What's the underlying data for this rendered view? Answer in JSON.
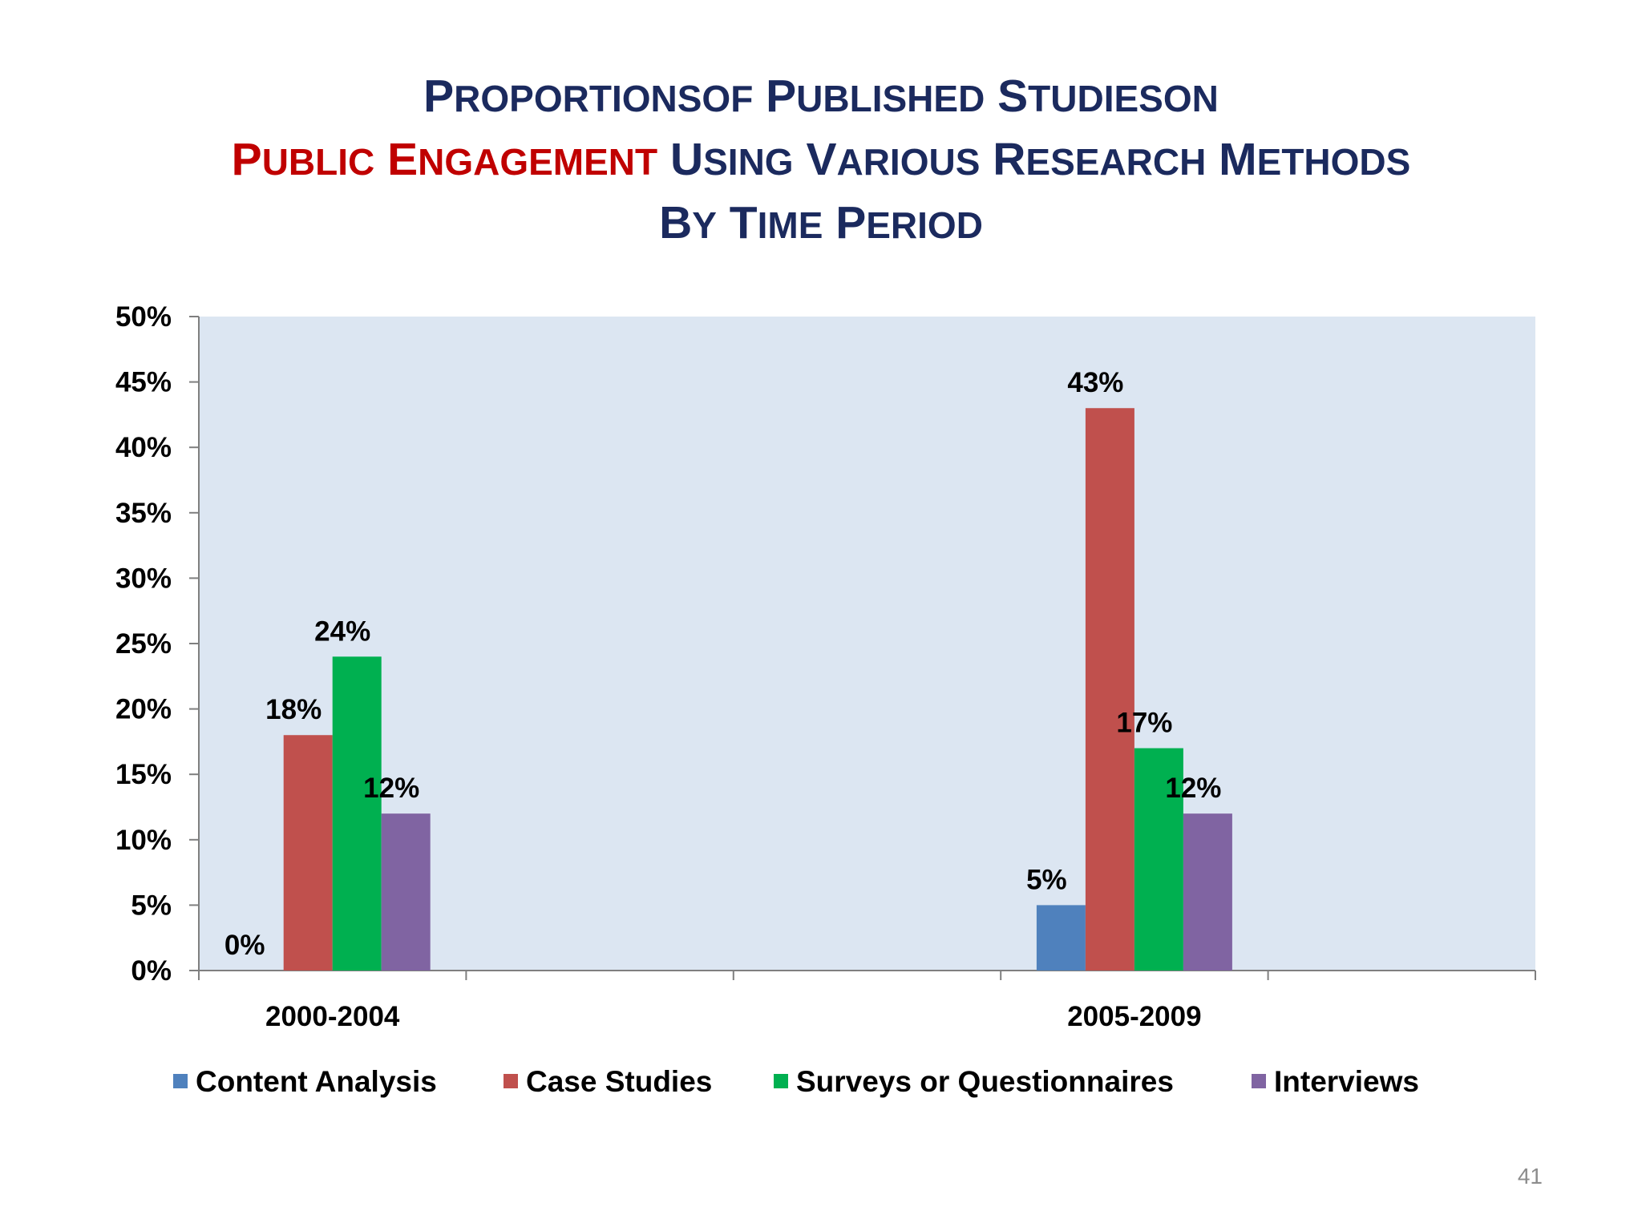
{
  "title": {
    "line1": [
      {
        "cap": "P",
        "rest": "ROPORTIONSOF",
        "red": false
      },
      {
        "cap": "P",
        "rest": "UBLISHED",
        "red": false
      },
      {
        "cap": "S",
        "rest": "TUDIESON",
        "red": false
      }
    ],
    "line2": [
      {
        "cap": "P",
        "rest": "UBLIC",
        "red": true
      },
      {
        "cap": "E",
        "rest": "NGAGEMENT",
        "red": true
      },
      {
        "cap": "U",
        "rest": "SING",
        "red": false
      },
      {
        "cap": "V",
        "rest": "ARIOUS",
        "red": false
      },
      {
        "cap": "R",
        "rest": "ESEARCH",
        "red": false
      },
      {
        "cap": "M",
        "rest": "ETHODS",
        "red": false
      }
    ],
    "line3": [
      {
        "cap": "B",
        "rest": "Y",
        "red": false
      },
      {
        "cap": "T",
        "rest": "IME",
        "red": false
      },
      {
        "cap": "P",
        "rest": "ERIOD",
        "red": false
      }
    ]
  },
  "slide_number": "41",
  "colors": {
    "title": "#1b2a5e",
    "accent_red": "#c00000",
    "plot_background": "#dce6f2"
  },
  "chart_data": {
    "type": "bar",
    "categories": [
      "2000-2004",
      "2005-2009"
    ],
    "series": [
      {
        "name": "Content Analysis",
        "color": "#4f81bd",
        "values": [
          0,
          5
        ],
        "labels": [
          "0%",
          "5%"
        ]
      },
      {
        "name": "Case Studies",
        "color": "#c0504d",
        "values": [
          18,
          43
        ],
        "labels": [
          "18%",
          "43%"
        ]
      },
      {
        "name": "Surveys or Questionnaires",
        "color": "#00b050",
        "values": [
          24,
          17
        ],
        "labels": [
          "24%",
          "17%"
        ]
      },
      {
        "name": "Interviews",
        "color": "#8064a2",
        "values": [
          12,
          12
        ],
        "labels": [
          "12%",
          "12%"
        ]
      }
    ],
    "ylim": [
      0,
      50
    ],
    "yticks": [
      0,
      5,
      10,
      15,
      20,
      25,
      30,
      35,
      40,
      45,
      50
    ],
    "ytick_labels": [
      "0%",
      "5%",
      "10%",
      "15%",
      "20%",
      "25%",
      "30%",
      "35%",
      "40%",
      "45%",
      "50%"
    ],
    "xlabel": "",
    "ylabel": "",
    "grid": false,
    "legend_position": "bottom"
  }
}
